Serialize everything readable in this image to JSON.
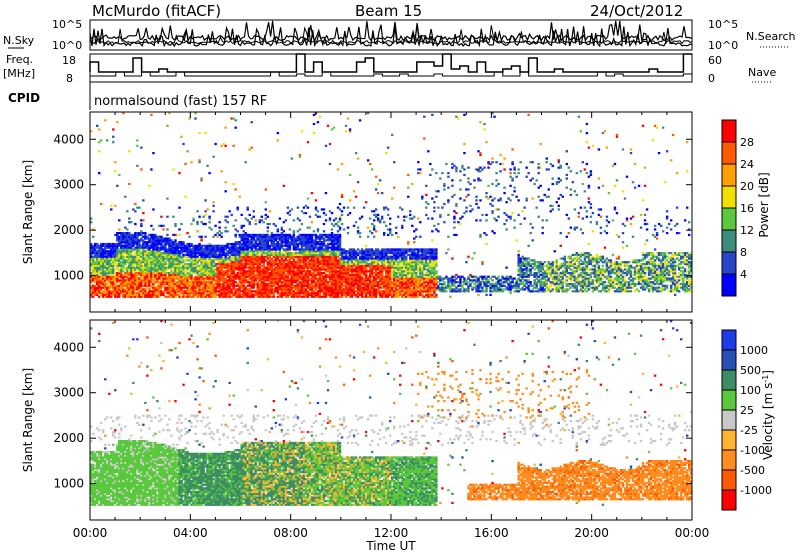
{
  "header": {
    "station": "McMurdo (fitACF)",
    "beam": "Beam 15",
    "date": "24/Oct/2012"
  },
  "noise_panel": {
    "left_label": "N.Sky",
    "right_label": "N.Search",
    "left_ticks": [
      "10^5",
      "10^0"
    ],
    "right_ticks": [
      "10^5",
      "10^0"
    ]
  },
  "freq_panel": {
    "left_label_1": "Freq.",
    "left_label_2": "[MHz]",
    "left_ticks": [
      "18",
      "8"
    ],
    "right_label": "Nave",
    "right_ticks": [
      "60",
      "0"
    ]
  },
  "cpid": {
    "label": "CPID",
    "text": "normalsound (fast) 157 RF"
  },
  "colors": {
    "power": [
      "#0000ff",
      "#2747c8",
      "#3c8c7c",
      "#5cc840",
      "#f0e000",
      "#ffa000",
      "#ff5a00",
      "#ff0000"
    ],
    "velocity": [
      "#ff0000",
      "#ff5a00",
      "#ff8c1e",
      "#ffb432",
      "#c8c8c8",
      "#5ac83c",
      "#3c8c64",
      "#2850b4",
      "#1e3ce6"
    ]
  },
  "chart_data": [
    {
      "type": "heatmap",
      "title": "",
      "xlabel": "",
      "ylabel": "Slant Range [km]",
      "x_ticks": [
        "00:00",
        "04:00",
        "08:00",
        "12:00",
        "16:00",
        "20:00",
        "00:00"
      ],
      "y_ticks": [
        1000,
        2000,
        3000,
        4000
      ],
      "ylim": [
        200,
        4600
      ],
      "xlim_hours": [
        0,
        24
      ],
      "colorbar_label": "Power [dB]",
      "colorbar_ticks": [
        4,
        8,
        12,
        16,
        20,
        24,
        28
      ],
      "colorbar_range": [
        0,
        32
      ]
    },
    {
      "type": "heatmap",
      "title": "",
      "xlabel": "Time UT",
      "ylabel": "Slant Range [km]",
      "x_ticks": [
        "00:00",
        "04:00",
        "08:00",
        "12:00",
        "16:00",
        "20:00",
        "00:00"
      ],
      "y_ticks": [
        1000,
        2000,
        3000,
        4000
      ],
      "ylim": [
        200,
        4600
      ],
      "xlim_hours": [
        0,
        24
      ],
      "colorbar_label": "Velocity [m s",
      "colorbar_label_sup": "-1",
      "colorbar_label_end": "]",
      "colorbar_ticks": [
        "-1000",
        "-500",
        "-100",
        "-25",
        "25",
        "100",
        "500",
        "1000"
      ]
    }
  ]
}
